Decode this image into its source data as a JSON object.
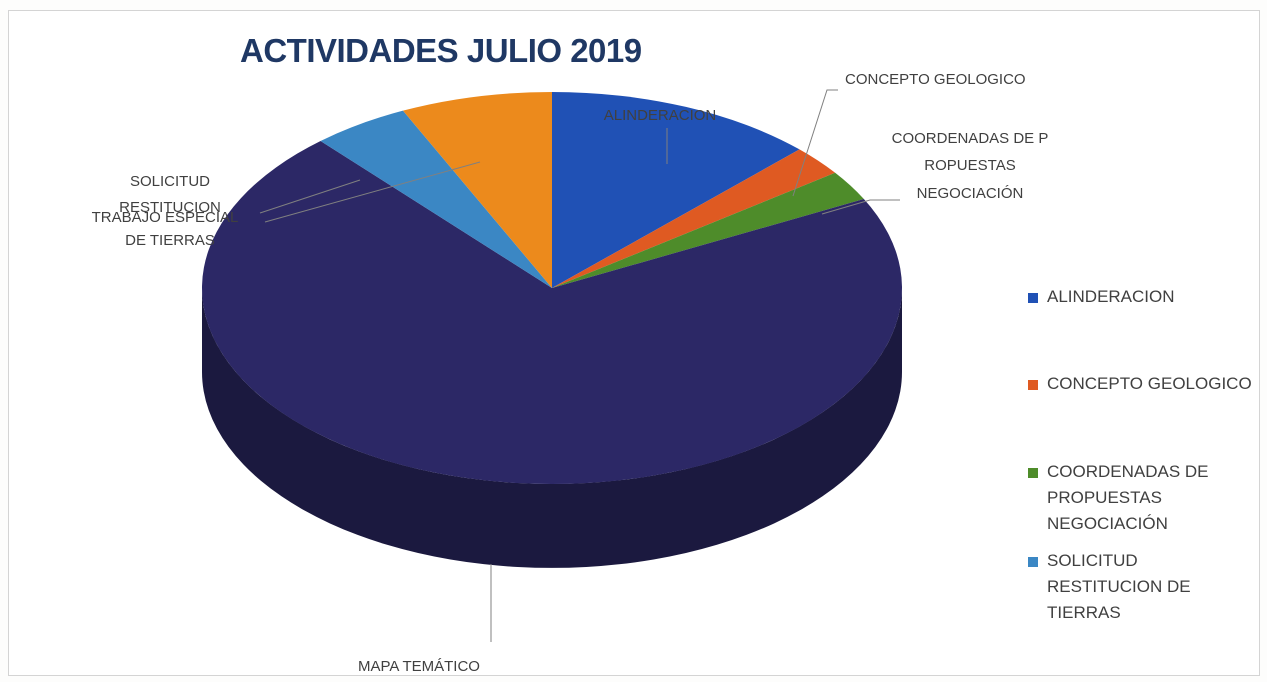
{
  "chart_data": {
    "type": "pie",
    "three_d": true,
    "title": "ACTIVIDADES JULIO 2019",
    "legend_position": "right",
    "slices": [
      {
        "label": "ALINDERACION",
        "value": 12.5,
        "color": "#2051b5"
      },
      {
        "label": "CONCEPTO GEOLOGICO",
        "value": 2.5,
        "color": "#df5a22"
      },
      {
        "label": "COORDENADAS DE PROPUESTAS NEGOCIACIÓN",
        "value": 2.5,
        "color": "#4e8c2a"
      },
      {
        "label": "MAPA TEMÁTICO",
        "value": 71,
        "color": "#2c2866"
      },
      {
        "label": "SOLICITUD RESTITUCION DE TIERRAS",
        "value": 4.5,
        "color": "#3b87c4"
      },
      {
        "label": "TRABAJO ESPECIAL",
        "value": 7,
        "color": "#ec8a1c"
      }
    ],
    "slice_labels": [
      {
        "text": "ALINDERACION"
      },
      {
        "text": "CONCEPTO GEOLOGICO"
      },
      {
        "text": "COORDENADAS DE PROPUESTAS NEGOCIACIÓN"
      },
      {
        "text": "MAPA TEMÁTICO"
      },
      {
        "text": "SOLICITUD RESTITUCION DE TIERRAS"
      },
      {
        "text": "TRABAJO ESPECIAL"
      }
    ],
    "legend": [
      {
        "label": "ALINDERACION",
        "color": "#2051b5"
      },
      {
        "label": "CONCEPTO GEOLOGICO",
        "color": "#df5a22"
      },
      {
        "label": "COORDENADAS DE PROPUESTAS NEGOCIACIÓN",
        "color": "#4e8c2a"
      },
      {
        "label": "SOLICITUD RESTITUCION DE TIERRAS",
        "color": "#3b87c4"
      }
    ]
  }
}
